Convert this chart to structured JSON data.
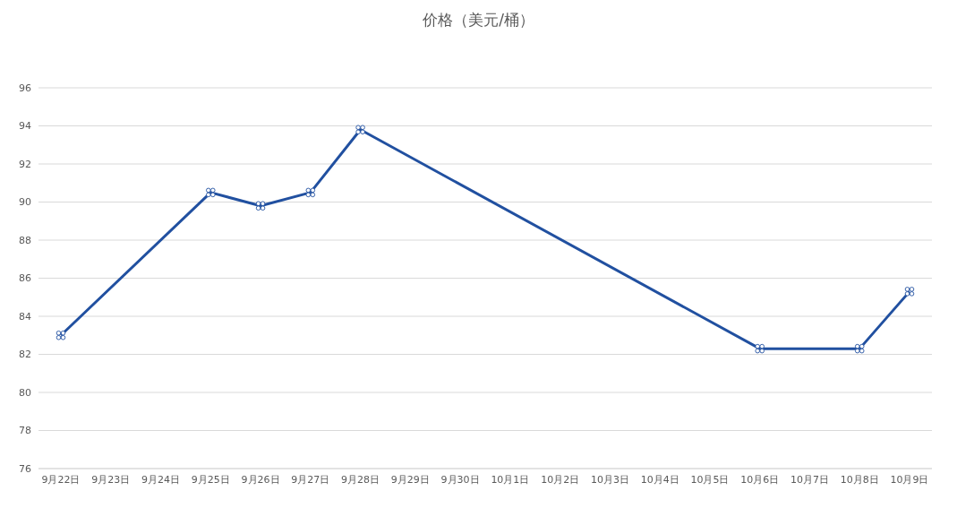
{
  "chart_data": {
    "type": "line",
    "title": "价格（美元/桶）",
    "categories": [
      "9月22日",
      "9月23日",
      "9月24日",
      "9月25日",
      "9月26日",
      "9月27日",
      "9月28日",
      "9月29日",
      "9月30日",
      "10月1日",
      "10月2日",
      "10月3日",
      "10月4日",
      "10月5日",
      "10月6日",
      "10月7日",
      "10月8日",
      "10月9日"
    ],
    "series": [
      {
        "color": "#2150a0",
        "values": [
          83.0,
          null,
          null,
          90.5,
          89.8,
          90.5,
          93.8,
          null,
          null,
          null,
          null,
          null,
          null,
          null,
          82.3,
          null,
          82.3,
          85.3
        ]
      }
    ],
    "ylim": [
      76,
      96
    ],
    "yticks": [
      76,
      78,
      80,
      82,
      84,
      86,
      88,
      90,
      92,
      94,
      96
    ],
    "grid": "y",
    "marker": "cross",
    "line_style": "solid",
    "legend": false
  }
}
